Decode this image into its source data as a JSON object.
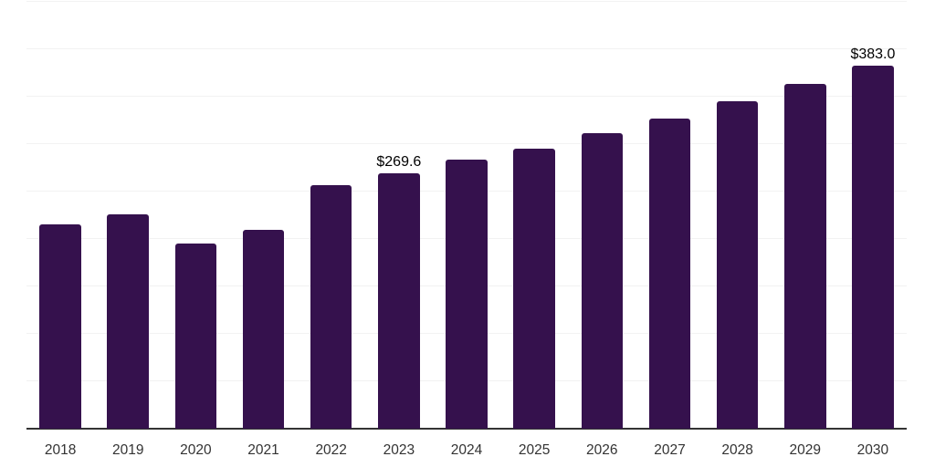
{
  "chart_data": {
    "type": "bar",
    "title": "",
    "xlabel": "",
    "ylabel": "",
    "categories": [
      "2018",
      "2019",
      "2020",
      "2021",
      "2022",
      "2023",
      "2024",
      "2025",
      "2026",
      "2027",
      "2028",
      "2029",
      "2030"
    ],
    "values": [
      215.5,
      225.5,
      195.5,
      210.0,
      257.0,
      269.6,
      284.0,
      295.5,
      311.8,
      327.3,
      345.5,
      363.0,
      383.0
    ],
    "data_labels": [
      "",
      "",
      "",
      "",
      "",
      "$269.6",
      "",
      "",
      "",
      "",
      "",
      "",
      "$383.0"
    ],
    "ylim": [
      0,
      450
    ],
    "grid_step": 50,
    "grid": "horizontal-only",
    "legend": "none",
    "colors": {
      "bar": "#35114d",
      "gridline": "#f2f2f2",
      "axis": "#333333",
      "tick_text": "#333333",
      "label_text": "#000000",
      "background": "#ffffff"
    }
  }
}
